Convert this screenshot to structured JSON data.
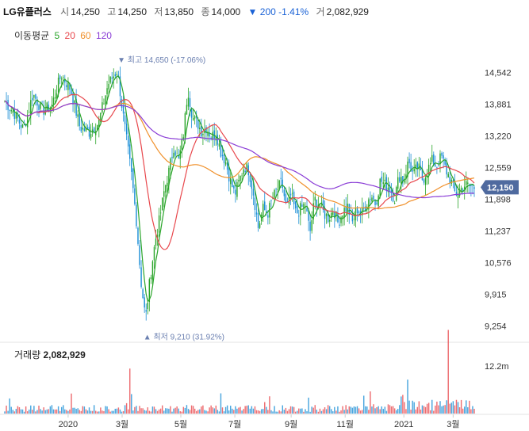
{
  "header": {
    "name": "LG유플러스",
    "open_label": "시",
    "open": "14,250",
    "high_label": "고",
    "high": "14,250",
    "low_label": "저",
    "low": "13,850",
    "close_label": "종",
    "close": "14,000",
    "change_arrow": "▼",
    "change": "200",
    "change_pct": "-1.41%",
    "volume_label": "거",
    "volume": "2,082,929"
  },
  "ma_legend": {
    "label": "이동평균",
    "items": [
      {
        "period": "5",
        "color": "#2aa52a"
      },
      {
        "period": "20",
        "color": "#e8484d"
      },
      {
        "period": "60",
        "color": "#f0902a"
      },
      {
        "period": "120",
        "color": "#8a3cd6"
      }
    ]
  },
  "volume_panel": {
    "label": "거래량",
    "value": "2,082,929"
  },
  "colors": {
    "up": "#e8484d",
    "down": "#1a8ed6",
    "candle_green": "#2aa52a",
    "price_tag": "#4f6a9f"
  },
  "chart_data": {
    "type": "candlestick",
    "y_ticks": [
      "14,542",
      "13,881",
      "13,220",
      "12,559",
      "11,898",
      "11,237",
      "10,576",
      "9,915",
      "9,254"
    ],
    "y_tick_values": [
      14542,
      13881,
      13220,
      12559,
      11898,
      11237,
      10576,
      9915,
      9254
    ],
    "ylim": [
      8950,
      14900
    ],
    "x_labels": [
      "2020",
      "3월",
      "5월",
      "7월",
      "9월",
      "11월",
      "2021",
      "3월"
    ],
    "x_label_positions": [
      0.135,
      0.25,
      0.375,
      0.49,
      0.61,
      0.725,
      0.85,
      0.955
    ],
    "current_price": "12,150",
    "current_price_value": 12150,
    "high_annotation": {
      "arrow": "▼",
      "label": "최고",
      "value": "14,650 (-17.06%)",
      "price": 14650,
      "position": 0.24
    },
    "low_annotation": {
      "arrow": "▲",
      "label": "최저",
      "value": "9,210 (31.92%)",
      "price": 9210,
      "position": 0.302
    },
    "volume_max_label": "12.2m",
    "volume_max": 12.2,
    "close_anchors": [
      [
        0.0,
        13950
      ],
      [
        0.02,
        13700
      ],
      [
        0.04,
        13350
      ],
      [
        0.06,
        14100
      ],
      [
        0.08,
        13750
      ],
      [
        0.1,
        13850
      ],
      [
        0.12,
        14500
      ],
      [
        0.14,
        14200
      ],
      [
        0.16,
        13400
      ],
      [
        0.18,
        13300
      ],
      [
        0.2,
        13500
      ],
      [
        0.22,
        14300
      ],
      [
        0.24,
        14600
      ],
      [
        0.25,
        13800
      ],
      [
        0.26,
        13100
      ],
      [
        0.27,
        12400
      ],
      [
        0.28,
        11500
      ],
      [
        0.29,
        10200
      ],
      [
        0.3,
        9400
      ],
      [
        0.31,
        10300
      ],
      [
        0.32,
        11000
      ],
      [
        0.33,
        11500
      ],
      [
        0.34,
        12100
      ],
      [
        0.35,
        12500
      ],
      [
        0.36,
        13000
      ],
      [
        0.37,
        12700
      ],
      [
        0.38,
        13200
      ],
      [
        0.39,
        14200
      ],
      [
        0.4,
        13600
      ],
      [
        0.41,
        13500
      ],
      [
        0.42,
        13300
      ],
      [
        0.43,
        13400
      ],
      [
        0.44,
        13200
      ],
      [
        0.45,
        13300
      ],
      [
        0.46,
        12900
      ],
      [
        0.47,
        12700
      ],
      [
        0.48,
        12300
      ],
      [
        0.49,
        12000
      ],
      [
        0.5,
        12300
      ],
      [
        0.51,
        12600
      ],
      [
        0.52,
        12500
      ],
      [
        0.53,
        12000
      ],
      [
        0.54,
        11300
      ],
      [
        0.55,
        11700
      ],
      [
        0.56,
        11600
      ],
      [
        0.57,
        11900
      ],
      [
        0.58,
        12100
      ],
      [
        0.59,
        12250
      ],
      [
        0.6,
        11700
      ],
      [
        0.61,
        12000
      ],
      [
        0.62,
        11600
      ],
      [
        0.63,
        11700
      ],
      [
        0.64,
        11800
      ],
      [
        0.65,
        11200
      ],
      [
        0.66,
        11900
      ],
      [
        0.67,
        11800
      ],
      [
        0.68,
        11600
      ],
      [
        0.69,
        11500
      ],
      [
        0.7,
        11700
      ],
      [
        0.71,
        11400
      ],
      [
        0.72,
        11650
      ],
      [
        0.73,
        11750
      ],
      [
        0.74,
        11400
      ],
      [
        0.75,
        11700
      ],
      [
        0.76,
        11600
      ],
      [
        0.77,
        11800
      ],
      [
        0.78,
        12000
      ],
      [
        0.79,
        11800
      ],
      [
        0.8,
        12300
      ],
      [
        0.81,
        12200
      ],
      [
        0.82,
        12150
      ],
      [
        0.83,
        11900
      ],
      [
        0.84,
        12400
      ],
      [
        0.85,
        12300
      ],
      [
        0.86,
        12700
      ],
      [
        0.87,
        12400
      ],
      [
        0.88,
        12600
      ],
      [
        0.89,
        12300
      ],
      [
        0.9,
        12500
      ],
      [
        0.91,
        12700
      ],
      [
        0.92,
        12600
      ],
      [
        0.93,
        12800
      ],
      [
        0.94,
        12500
      ],
      [
        0.95,
        12300
      ],
      [
        0.96,
        12000
      ],
      [
        0.97,
        12100
      ],
      [
        0.98,
        12200
      ],
      [
        1.0,
        12150
      ]
    ]
  }
}
